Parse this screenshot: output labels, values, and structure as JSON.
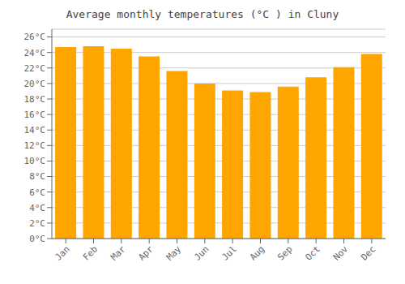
{
  "chart_data": {
    "type": "bar",
    "title": "Average monthly temperatures (°C ) in Cluny",
    "categories": [
      "Jan",
      "Feb",
      "Mar",
      "Apr",
      "May",
      "Jun",
      "Jul",
      "Aug",
      "Sep",
      "Oct",
      "Nov",
      "Dec"
    ],
    "values": [
      24.7,
      24.8,
      24.5,
      23.5,
      21.6,
      20.0,
      19.1,
      18.9,
      19.6,
      20.8,
      22.1,
      23.8
    ],
    "color": "#FFA500",
    "ylim": [
      0,
      27
    ],
    "yticks": [
      {
        "value": 0,
        "label": "0°C"
      },
      {
        "value": 2,
        "label": "2°C"
      },
      {
        "value": 4,
        "label": "4°C"
      },
      {
        "value": 6,
        "label": "6°C"
      },
      {
        "value": 8,
        "label": "8°C"
      },
      {
        "value": 10,
        "label": "10°C"
      },
      {
        "value": 12,
        "label": "12°C"
      },
      {
        "value": 14,
        "label": "14°C"
      },
      {
        "value": 16,
        "label": "16°C"
      },
      {
        "value": 18,
        "label": "18°C"
      },
      {
        "value": 20,
        "label": "20°C"
      },
      {
        "value": 22,
        "label": "22°C"
      },
      {
        "value": 24,
        "label": "24°C"
      },
      {
        "value": 26,
        "label": "26°C"
      }
    ],
    "grid": true
  }
}
